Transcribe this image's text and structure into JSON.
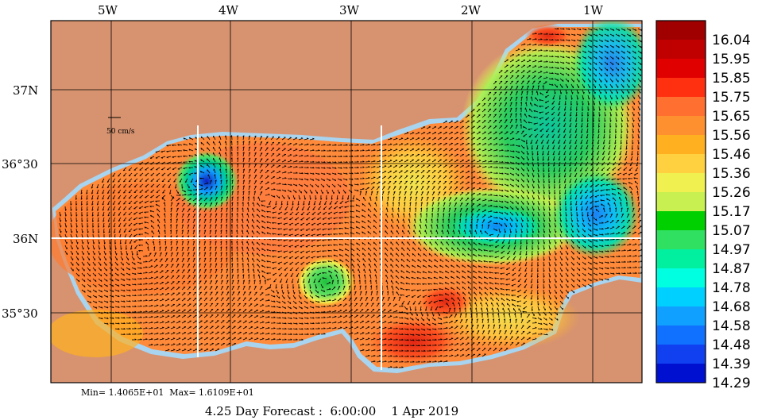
{
  "map": {
    "longitude_labels": [
      "5W",
      "4W",
      "3W",
      "2W",
      "1W"
    ],
    "latitude_labels": [
      "37N",
      "36°30",
      "36N",
      "35°30"
    ],
    "vector_scale_label": "50 cm/s"
  },
  "colorbar": {
    "values": [
      "16.04",
      "15.95",
      "15.85",
      "15.75",
      "15.65",
      "15.56",
      "15.46",
      "15.36",
      "15.26",
      "15.17",
      "15.07",
      "14.97",
      "14.87",
      "14.78",
      "14.68",
      "14.58",
      "14.48",
      "14.39",
      "14.29"
    ],
    "colors": [
      "#a00000",
      "#c00000",
      "#e00000",
      "#ff3010",
      "#ff7030",
      "#ff9030",
      "#ffb020",
      "#ffd040",
      "#f0f050",
      "#c8f050",
      "#00d000",
      "#30e060",
      "#00f0a0",
      "#00ffe0",
      "#00d0ff",
      "#10a0ff",
      "#1070ff",
      "#1040f0",
      "#0010d0"
    ]
  },
  "stats": {
    "text": "Min= 1.4065E+01  Max= 1.6109E+01"
  },
  "footer": {
    "forecast_text": "4.25 Day Forecast :  6:00:00    1 Apr 2019"
  }
}
